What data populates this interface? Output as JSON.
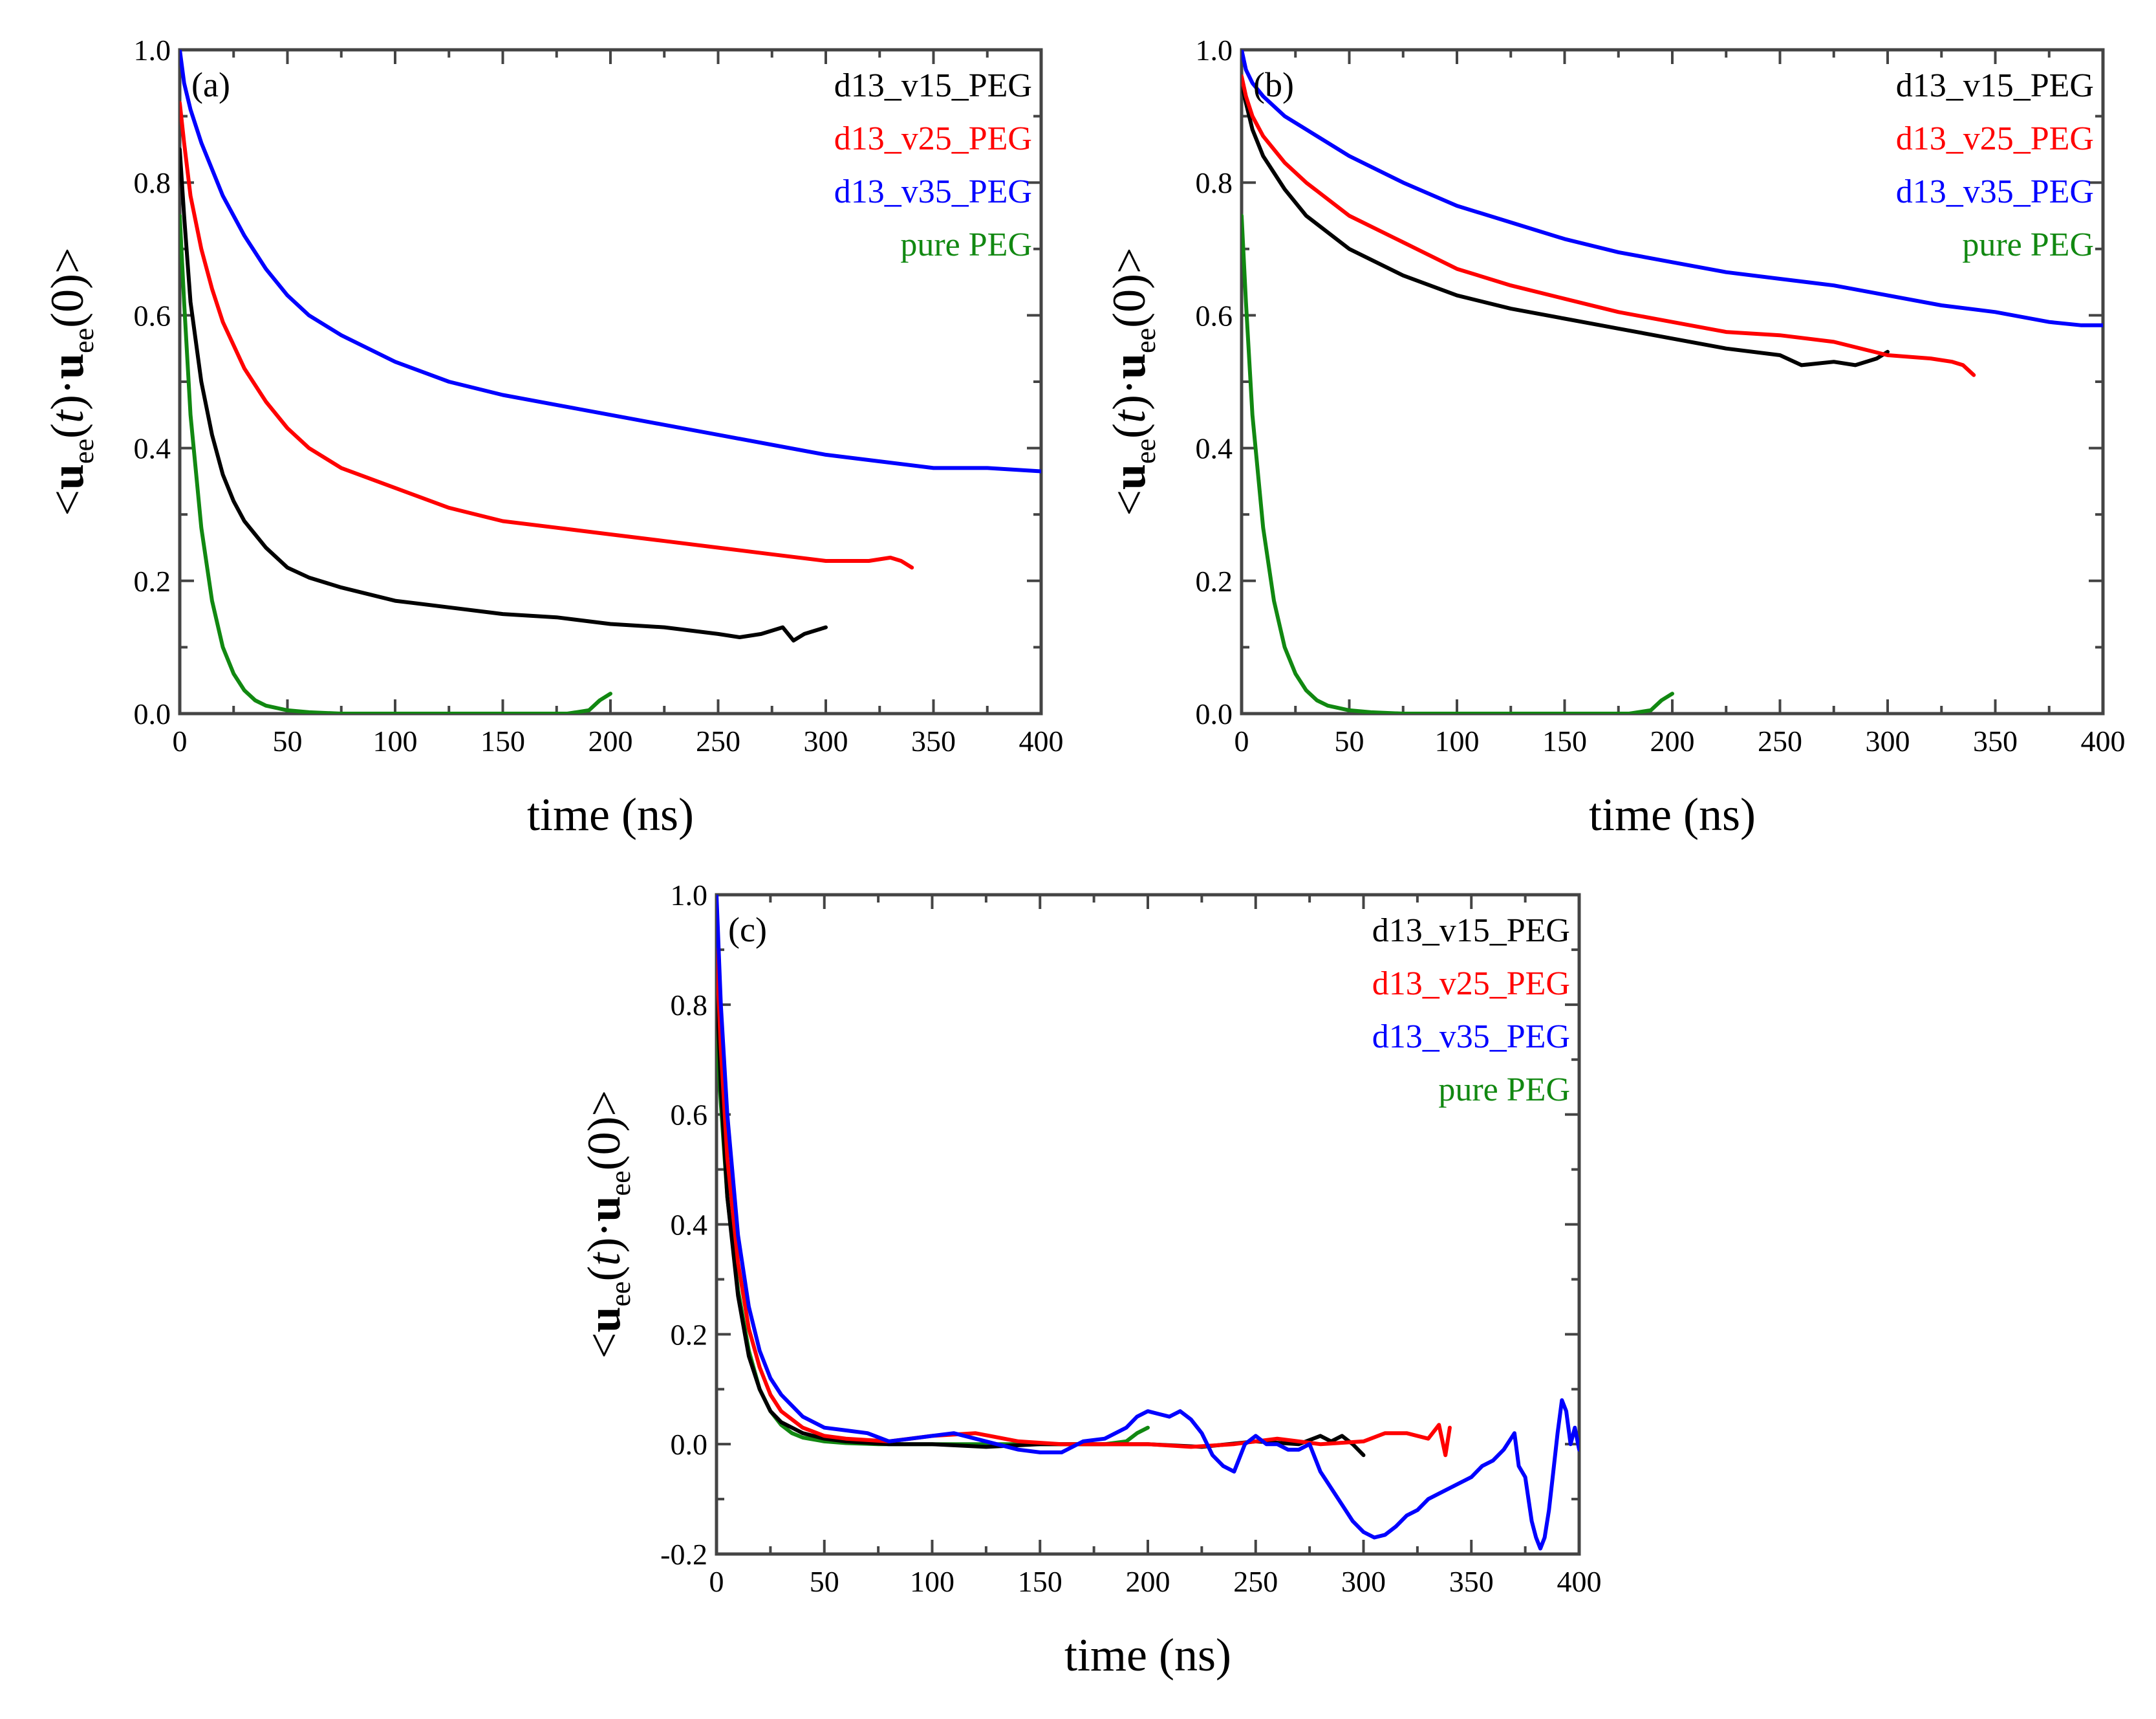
{
  "figure": {
    "colors": {
      "d13_v15_PEG": "#000000",
      "d13_v25_PEG": "#ff0000",
      "d13_v35_PEG": "#0000ff",
      "pure PEG": "#118811"
    }
  },
  "chart_data": [
    {
      "type": "line",
      "panel_label": "(a)",
      "xlabel": "time (ns)",
      "ylabel": "<u_ee(t)·u_ee(0)>",
      "ylabel_parts": [
        "<",
        "u",
        "ee",
        "(",
        "t",
        ")·",
        "u",
        "ee",
        "(0)>"
      ],
      "xlim": [
        0,
        400
      ],
      "ylim": [
        0.0,
        1.0
      ],
      "xticks": [
        "0",
        "50",
        "100",
        "150",
        "200",
        "250",
        "300",
        "350",
        "400"
      ],
      "yticks": [
        "0.0",
        "0.2",
        "0.4",
        "0.6",
        "0.8",
        "1.0"
      ],
      "legend_position": "top-right",
      "series": [
        {
          "name": "d13_v15_PEG",
          "color": "#000000",
          "x": [
            0,
            2,
            5,
            10,
            15,
            20,
            25,
            30,
            40,
            50,
            60,
            75,
            100,
            125,
            150,
            175,
            200,
            225,
            250,
            260,
            270,
            275,
            280,
            285,
            290,
            295,
            300
          ],
          "y": [
            0.85,
            0.75,
            0.62,
            0.5,
            0.42,
            0.36,
            0.32,
            0.29,
            0.25,
            0.22,
            0.205,
            0.19,
            0.17,
            0.16,
            0.15,
            0.145,
            0.135,
            0.13,
            0.12,
            0.115,
            0.12,
            0.125,
            0.13,
            0.11,
            0.12,
            0.125,
            0.13
          ]
        },
        {
          "name": "d13_v25_PEG",
          "color": "#ff0000",
          "x": [
            0,
            2,
            5,
            10,
            15,
            20,
            30,
            40,
            50,
            60,
            75,
            100,
            125,
            150,
            175,
            200,
            225,
            250,
            275,
            300,
            320,
            330,
            335,
            340
          ],
          "y": [
            0.92,
            0.86,
            0.78,
            0.7,
            0.64,
            0.59,
            0.52,
            0.47,
            0.43,
            0.4,
            0.37,
            0.34,
            0.31,
            0.29,
            0.28,
            0.27,
            0.26,
            0.25,
            0.24,
            0.23,
            0.23,
            0.235,
            0.23,
            0.22
          ]
        },
        {
          "name": "d13_v35_PEG",
          "color": "#0000ff",
          "x": [
            0,
            2,
            5,
            10,
            20,
            30,
            40,
            50,
            60,
            75,
            100,
            125,
            150,
            175,
            200,
            225,
            250,
            275,
            300,
            325,
            350,
            375,
            400
          ],
          "y": [
            1.0,
            0.95,
            0.91,
            0.86,
            0.78,
            0.72,
            0.67,
            0.63,
            0.6,
            0.57,
            0.53,
            0.5,
            0.48,
            0.465,
            0.45,
            0.435,
            0.42,
            0.405,
            0.39,
            0.38,
            0.37,
            0.37,
            0.365
          ]
        },
        {
          "name": "pure PEG",
          "color": "#118811",
          "x": [
            0,
            2,
            5,
            10,
            15,
            20,
            25,
            30,
            35,
            40,
            50,
            60,
            75,
            100,
            150,
            180,
            190,
            195,
            200
          ],
          "y": [
            0.75,
            0.62,
            0.45,
            0.28,
            0.17,
            0.1,
            0.06,
            0.035,
            0.02,
            0.012,
            0.005,
            0.002,
            0.0,
            0.0,
            0.0,
            0.0,
            0.005,
            0.02,
            0.03
          ]
        }
      ],
      "legend": [
        {
          "label": "d13_v15_PEG",
          "color": "#000000"
        },
        {
          "label": "d13_v25_PEG",
          "color": "#ff0000"
        },
        {
          "label": "d13_v35_PEG",
          "color": "#0000ff"
        },
        {
          "label": "pure PEG",
          "color": "#118811"
        }
      ]
    },
    {
      "type": "line",
      "panel_label": "(b)",
      "xlabel": "time (ns)",
      "ylabel": "<u_ee(t)·u_ee(0)>",
      "ylabel_parts": [
        "<",
        "u",
        "ee",
        "(",
        "t",
        ")·",
        "u",
        "ee",
        "(0)>"
      ],
      "xlim": [
        0,
        400
      ],
      "ylim": [
        0.0,
        1.0
      ],
      "xticks": [
        "0",
        "50",
        "100",
        "150",
        "200",
        "250",
        "300",
        "350",
        "400"
      ],
      "yticks": [
        "0.0",
        "0.2",
        "0.4",
        "0.6",
        "0.8",
        "1.0"
      ],
      "legend_position": "top-right",
      "series": [
        {
          "name": "d13_v15_PEG",
          "color": "#000000",
          "x": [
            0,
            2,
            5,
            10,
            20,
            30,
            50,
            75,
            100,
            125,
            150,
            175,
            200,
            225,
            250,
            260,
            275,
            285,
            290,
            295,
            300
          ],
          "y": [
            0.95,
            0.92,
            0.88,
            0.84,
            0.79,
            0.75,
            0.7,
            0.66,
            0.63,
            0.61,
            0.595,
            0.58,
            0.565,
            0.55,
            0.54,
            0.525,
            0.53,
            0.525,
            0.53,
            0.535,
            0.545
          ]
        },
        {
          "name": "d13_v25_PEG",
          "color": "#ff0000",
          "x": [
            0,
            2,
            5,
            10,
            20,
            30,
            50,
            75,
            100,
            125,
            150,
            175,
            200,
            225,
            250,
            275,
            300,
            320,
            330,
            335,
            340
          ],
          "y": [
            0.96,
            0.93,
            0.9,
            0.87,
            0.83,
            0.8,
            0.75,
            0.71,
            0.67,
            0.645,
            0.625,
            0.605,
            0.59,
            0.575,
            0.57,
            0.56,
            0.54,
            0.535,
            0.53,
            0.525,
            0.51
          ]
        },
        {
          "name": "d13_v35_PEG",
          "color": "#0000ff",
          "x": [
            0,
            2,
            5,
            10,
            20,
            30,
            50,
            75,
            100,
            125,
            150,
            175,
            200,
            225,
            250,
            275,
            300,
            325,
            350,
            375,
            390,
            400
          ],
          "y": [
            1.0,
            0.97,
            0.95,
            0.93,
            0.9,
            0.88,
            0.84,
            0.8,
            0.765,
            0.74,
            0.715,
            0.695,
            0.68,
            0.665,
            0.655,
            0.645,
            0.63,
            0.615,
            0.605,
            0.59,
            0.585,
            0.585
          ]
        },
        {
          "name": "pure PEG",
          "color": "#118811",
          "x": [
            0,
            2,
            5,
            10,
            15,
            20,
            25,
            30,
            35,
            40,
            50,
            60,
            75,
            100,
            150,
            180,
            190,
            195,
            200
          ],
          "y": [
            0.75,
            0.62,
            0.45,
            0.28,
            0.17,
            0.1,
            0.06,
            0.035,
            0.02,
            0.012,
            0.005,
            0.002,
            0.0,
            0.0,
            0.0,
            0.0,
            0.005,
            0.02,
            0.03
          ]
        }
      ],
      "legend": [
        {
          "label": "d13_v15_PEG",
          "color": "#000000"
        },
        {
          "label": "d13_v25_PEG",
          "color": "#ff0000"
        },
        {
          "label": "d13_v35_PEG",
          "color": "#0000ff"
        },
        {
          "label": "pure PEG",
          "color": "#118811"
        }
      ]
    },
    {
      "type": "line",
      "panel_label": "(c)",
      "xlabel": "time (ns)",
      "ylabel": "<u_ee(t)·u_ee(0)>",
      "ylabel_parts": [
        "<",
        "u",
        "ee",
        "(",
        "t",
        ")·",
        "u",
        "ee",
        "(0)>"
      ],
      "xlim": [
        0,
        400
      ],
      "ylim": [
        -0.2,
        1.0
      ],
      "xticks": [
        "0",
        "50",
        "100",
        "150",
        "200",
        "250",
        "300",
        "350",
        "400"
      ],
      "yticks": [
        "-0.2",
        "0.0",
        "0.2",
        "0.4",
        "0.6",
        "0.8",
        "1.0"
      ],
      "legend_position": "top-right",
      "series": [
        {
          "name": "d13_v15_PEG",
          "color": "#000000",
          "x": [
            0,
            2,
            5,
            10,
            15,
            20,
            25,
            30,
            40,
            50,
            60,
            80,
            100,
            125,
            150,
            175,
            200,
            225,
            250,
            270,
            280,
            285,
            290,
            295,
            300
          ],
          "y": [
            0.85,
            0.65,
            0.45,
            0.27,
            0.16,
            0.1,
            0.06,
            0.04,
            0.02,
            0.01,
            0.005,
            0.0,
            0.0,
            -0.005,
            0.0,
            0.0,
            0.0,
            -0.005,
            0.005,
            0.0,
            0.015,
            0.005,
            0.015,
            0.0,
            -0.02
          ]
        },
        {
          "name": "d13_v25_PEG",
          "color": "#ff0000",
          "x": [
            0,
            2,
            5,
            10,
            15,
            20,
            25,
            30,
            40,
            50,
            60,
            80,
            100,
            120,
            140,
            160,
            180,
            200,
            220,
            240,
            260,
            280,
            300,
            310,
            320,
            330,
            335,
            338,
            340
          ],
          "y": [
            0.9,
            0.72,
            0.52,
            0.33,
            0.21,
            0.14,
            0.09,
            0.06,
            0.03,
            0.015,
            0.01,
            0.005,
            0.015,
            0.02,
            0.005,
            0.0,
            0.0,
            0.0,
            -0.005,
            0.0,
            0.01,
            0.0,
            0.005,
            0.02,
            0.02,
            0.01,
            0.035,
            -0.02,
            0.03
          ]
        },
        {
          "name": "d13_v35_PEG",
          "color": "#0000ff",
          "x": [
            0,
            2,
            5,
            10,
            15,
            20,
            25,
            30,
            40,
            50,
            60,
            70,
            80,
            90,
            100,
            110,
            120,
            130,
            140,
            150,
            160,
            170,
            180,
            190,
            195,
            200,
            205,
            210,
            215,
            220,
            225,
            230,
            235,
            240,
            245,
            250,
            255,
            260,
            265,
            270,
            275,
            280,
            285,
            290,
            295,
            300,
            305,
            310,
            315,
            320,
            325,
            330,
            335,
            340,
            345,
            350,
            355,
            360,
            365,
            370,
            372,
            375,
            378,
            380,
            382,
            384,
            386,
            388,
            390,
            392,
            394,
            396,
            398,
            400
          ],
          "y": [
            1.0,
            0.8,
            0.6,
            0.38,
            0.25,
            0.17,
            0.12,
            0.09,
            0.05,
            0.03,
            0.025,
            0.02,
            0.005,
            0.01,
            0.015,
            0.02,
            0.01,
            0.0,
            -0.01,
            -0.015,
            -0.015,
            0.005,
            0.01,
            0.03,
            0.05,
            0.06,
            0.055,
            0.05,
            0.06,
            0.045,
            0.02,
            -0.02,
            -0.04,
            -0.05,
            0.0,
            0.015,
            0.0,
            0.0,
            -0.01,
            -0.01,
            0.0,
            -0.05,
            -0.08,
            -0.11,
            -0.14,
            -0.16,
            -0.17,
            -0.165,
            -0.15,
            -0.13,
            -0.12,
            -0.1,
            -0.09,
            -0.08,
            -0.07,
            -0.06,
            -0.04,
            -0.03,
            -0.01,
            0.02,
            -0.04,
            -0.06,
            -0.14,
            -0.17,
            -0.19,
            -0.17,
            -0.12,
            -0.05,
            0.02,
            0.08,
            0.06,
            0.0,
            0.03,
            -0.01
          ]
        },
        {
          "name": "pure PEG",
          "color": "#118811",
          "x": [
            0,
            2,
            5,
            10,
            15,
            20,
            25,
            30,
            35,
            40,
            50,
            60,
            75,
            100,
            150,
            180,
            190,
            195,
            200
          ],
          "y": [
            0.75,
            0.62,
            0.45,
            0.28,
            0.17,
            0.1,
            0.06,
            0.035,
            0.02,
            0.012,
            0.005,
            0.002,
            0.0,
            0.0,
            0.0,
            0.0,
            0.005,
            0.02,
            0.03
          ]
        }
      ],
      "legend": [
        {
          "label": "d13_v15_PEG",
          "color": "#000000"
        },
        {
          "label": "d13_v25_PEG",
          "color": "#ff0000"
        },
        {
          "label": "d13_v35_PEG",
          "color": "#0000ff"
        },
        {
          "label": "pure PEG",
          "color": "#118811"
        }
      ]
    }
  ]
}
